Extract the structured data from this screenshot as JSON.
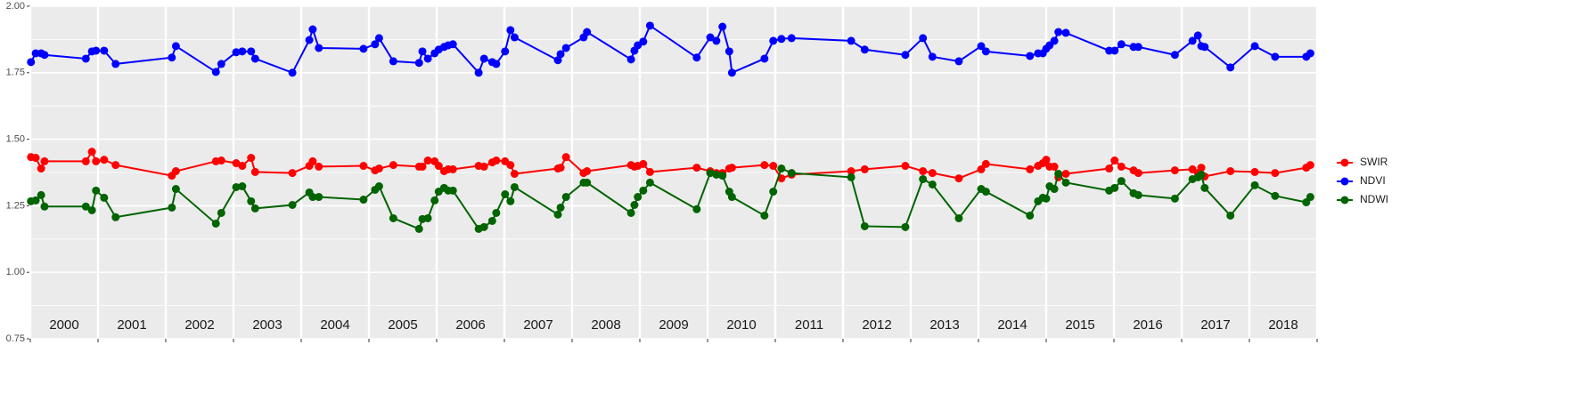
{
  "chart_data": {
    "type": "line",
    "x": [
      2000.01,
      2000.08,
      2000.16,
      2000.21,
      2000.82,
      2000.91,
      2000.97,
      2001.09,
      2001.26,
      2002.09,
      2002.15,
      2002.74,
      2002.82,
      2003.04,
      2003.13,
      2003.26,
      2003.32,
      2003.87,
      2004.12,
      2004.17,
      2004.26,
      2004.92,
      2005.09,
      2005.15,
      2005.36,
      2005.74,
      2005.79,
      2005.87,
      2005.97,
      2006.03,
      2006.11,
      2006.17,
      2006.24,
      2006.62,
      2006.7,
      2006.82,
      2006.88,
      2007.01,
      2007.09,
      2007.15,
      2007.79,
      2007.83,
      2007.91,
      2008.17,
      2008.22,
      2008.87,
      2008.92,
      2008.97,
      2009.05,
      2009.15,
      2009.84,
      2010.04,
      2010.13,
      2010.22,
      2010.32,
      2010.36,
      2010.84,
      2010.97,
      2011.09,
      2011.24,
      2012.12,
      2012.32,
      2012.92,
      2013.18,
      2013.32,
      2013.71,
      2014.04,
      2014.11,
      2014.76,
      2014.88,
      2014.95,
      2015.0,
      2015.05,
      2015.12,
      2015.18,
      2015.29,
      2015.93,
      2016.01,
      2016.11,
      2016.29,
      2016.36,
      2016.9,
      2017.16,
      2017.24,
      2017.29,
      2017.34,
      2017.72,
      2018.08,
      2018.38,
      2018.84,
      2018.9
    ],
    "series": [
      {
        "name": "SWIR",
        "color": "#ff0000",
        "values": [
          1.433,
          1.43,
          1.39,
          1.417,
          1.417,
          1.453,
          1.417,
          1.423,
          1.403,
          1.363,
          1.38,
          1.417,
          1.42,
          1.41,
          1.4,
          1.43,
          1.377,
          1.373,
          1.4,
          1.417,
          1.397,
          1.4,
          1.383,
          1.39,
          1.403,
          1.397,
          1.397,
          1.42,
          1.417,
          1.4,
          1.38,
          1.387,
          1.387,
          1.4,
          1.397,
          1.413,
          1.42,
          1.417,
          1.403,
          1.37,
          1.39,
          1.393,
          1.433,
          1.373,
          1.38,
          1.403,
          1.397,
          1.4,
          1.407,
          1.377,
          1.393,
          1.38,
          1.373,
          1.373,
          1.39,
          1.393,
          1.403,
          1.4,
          1.353,
          1.367,
          1.38,
          1.387,
          1.4,
          1.38,
          1.373,
          1.353,
          1.387,
          1.407,
          1.387,
          1.4,
          1.41,
          1.423,
          1.397,
          1.397,
          1.357,
          1.37,
          1.39,
          1.42,
          1.397,
          1.383,
          1.373,
          1.383,
          1.387,
          1.373,
          1.393,
          1.36,
          1.38,
          1.377,
          1.373,
          1.393,
          1.403
        ]
      },
      {
        "name": "NDVI",
        "color": "#0000ff",
        "values": [
          1.79,
          1.823,
          1.823,
          1.817,
          1.803,
          1.83,
          1.833,
          1.833,
          1.783,
          1.807,
          1.85,
          1.753,
          1.783,
          1.827,
          1.83,
          1.83,
          1.803,
          1.75,
          1.873,
          1.913,
          1.843,
          1.84,
          1.857,
          1.88,
          1.793,
          1.787,
          1.83,
          1.803,
          1.823,
          1.837,
          1.847,
          1.853,
          1.857,
          1.75,
          1.803,
          1.79,
          1.783,
          1.83,
          1.91,
          1.883,
          1.797,
          1.82,
          1.843,
          1.883,
          1.903,
          1.8,
          1.833,
          1.853,
          1.867,
          1.927,
          1.807,
          1.883,
          1.87,
          1.923,
          1.83,
          1.75,
          1.803,
          1.87,
          1.877,
          1.88,
          1.87,
          1.837,
          1.817,
          1.88,
          1.81,
          1.793,
          1.85,
          1.83,
          1.813,
          1.823,
          1.823,
          1.84,
          1.853,
          1.87,
          1.903,
          1.9,
          1.833,
          1.833,
          1.857,
          1.847,
          1.847,
          1.817,
          1.87,
          1.89,
          1.85,
          1.847,
          1.77,
          1.85,
          1.81,
          1.81,
          1.823
        ]
      },
      {
        "name": "NDWI",
        "color": "#006400",
        "values": [
          1.267,
          1.27,
          1.29,
          1.247,
          1.247,
          1.233,
          1.307,
          1.28,
          1.207,
          1.243,
          1.313,
          1.183,
          1.223,
          1.32,
          1.323,
          1.267,
          1.24,
          1.253,
          1.3,
          1.283,
          1.283,
          1.273,
          1.31,
          1.323,
          1.203,
          1.163,
          1.2,
          1.203,
          1.27,
          1.303,
          1.317,
          1.307,
          1.307,
          1.163,
          1.17,
          1.193,
          1.223,
          1.293,
          1.267,
          1.32,
          1.217,
          1.243,
          1.283,
          1.337,
          1.337,
          1.223,
          1.253,
          1.283,
          1.307,
          1.337,
          1.237,
          1.373,
          1.367,
          1.363,
          1.303,
          1.283,
          1.213,
          1.303,
          1.39,
          1.373,
          1.357,
          1.173,
          1.17,
          1.35,
          1.33,
          1.203,
          1.313,
          1.303,
          1.213,
          1.267,
          1.28,
          1.277,
          1.323,
          1.313,
          1.37,
          1.337,
          1.307,
          1.317,
          1.343,
          1.297,
          1.29,
          1.277,
          1.35,
          1.357,
          1.367,
          1.317,
          1.213,
          1.327,
          1.287,
          1.263,
          1.283
        ]
      }
    ],
    "xlim": [
      2000,
      2019
    ],
    "xticks": [
      2000,
      2001,
      2002,
      2003,
      2004,
      2005,
      2006,
      2007,
      2008,
      2009,
      2010,
      2011,
      2012,
      2013,
      2014,
      2015,
      2016,
      2017,
      2018,
      2019
    ],
    "x_labels": [
      {
        "value": 2000.5,
        "label": "2000"
      },
      {
        "value": 2001.5,
        "label": "2001"
      },
      {
        "value": 2002.5,
        "label": "2002"
      },
      {
        "value": 2003.5,
        "label": "2003"
      },
      {
        "value": 2004.5,
        "label": "2004"
      },
      {
        "value": 2005.5,
        "label": "2005"
      },
      {
        "value": 2006.5,
        "label": "2006"
      },
      {
        "value": 2007.5,
        "label": "2007"
      },
      {
        "value": 2008.5,
        "label": "2008"
      },
      {
        "value": 2009.5,
        "label": "2009"
      },
      {
        "value": 2010.5,
        "label": "2010"
      },
      {
        "value": 2011.5,
        "label": "2011"
      },
      {
        "value": 2012.5,
        "label": "2012"
      },
      {
        "value": 2013.5,
        "label": "2013"
      },
      {
        "value": 2014.5,
        "label": "2014"
      },
      {
        "value": 2015.5,
        "label": "2015"
      },
      {
        "value": 2016.5,
        "label": "2016"
      },
      {
        "value": 2017.5,
        "label": "2017"
      },
      {
        "value": 2018.5,
        "label": "2018"
      }
    ],
    "ylim": [
      0.75,
      2
    ],
    "yticks": [
      {
        "value": 0.75,
        "label": "0.75"
      },
      {
        "value": 1,
        "label": "1.00"
      },
      {
        "value": 1.25,
        "label": "1.25"
      },
      {
        "value": 1.5,
        "label": "1.50"
      },
      {
        "value": 1.75,
        "label": "1.75"
      },
      {
        "value": 2,
        "label": "2.00"
      }
    ],
    "grid": true,
    "legend": "right"
  }
}
